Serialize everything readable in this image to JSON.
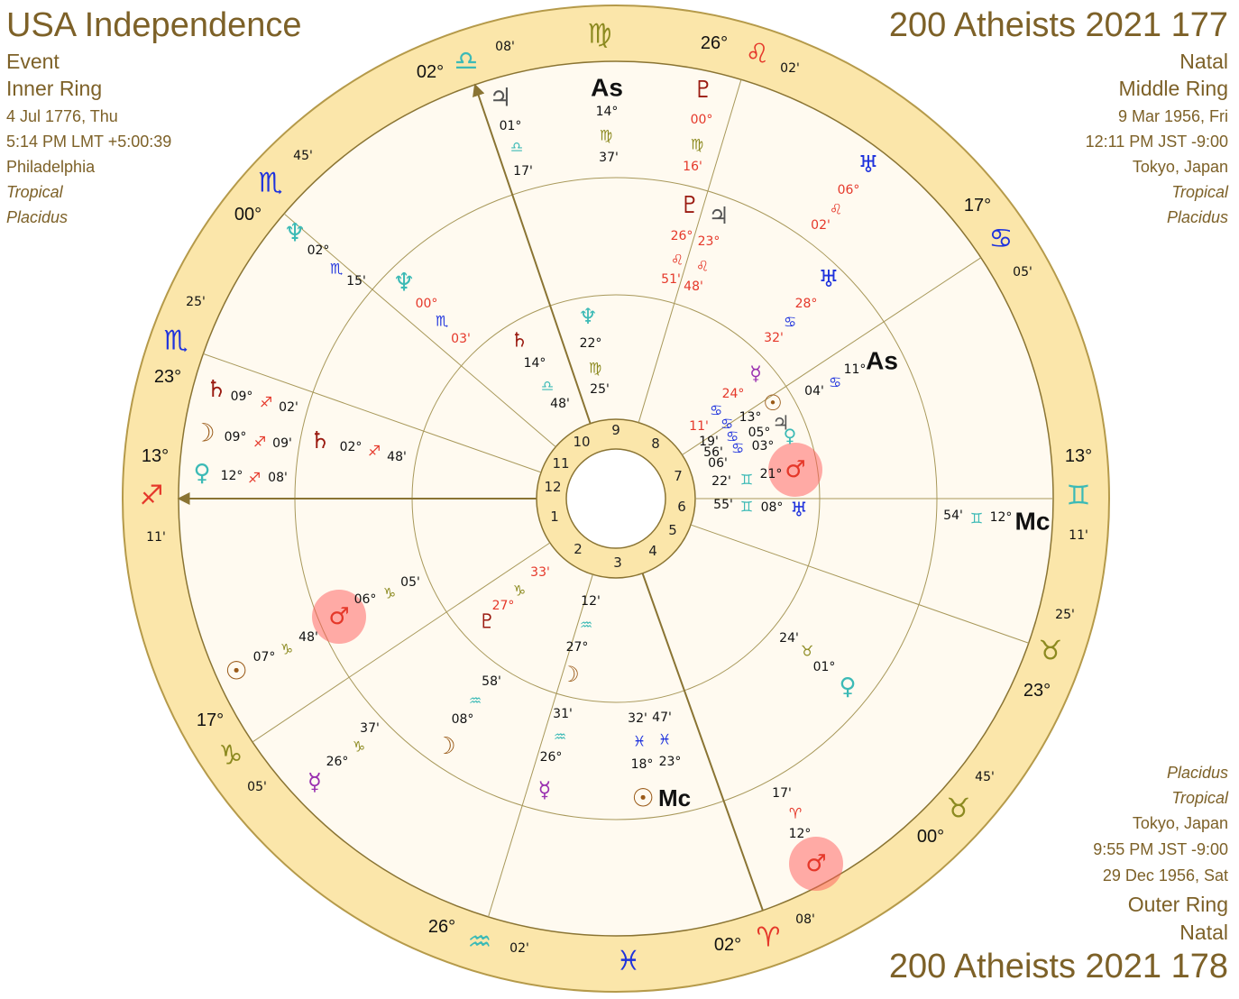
{
  "left_header": {
    "title": "USA Independence",
    "chart_type": "Event",
    "ring": "Inner Ring",
    "date": "4 Jul 1776, Thu",
    "time": "5:14 PM LMT +5:00:39",
    "place": "Philadelphia",
    "zodiac": "Tropical",
    "houses": "Placidus"
  },
  "right_header": {
    "title": "200 Atheists 2021 177",
    "chart_type": "Natal",
    "ring": "Middle Ring",
    "date": "9 Mar 1956, Fri",
    "time": "12:11 PM JST -9:00",
    "place": "Tokyo, Japan",
    "zodiac": "Tropical",
    "houses": "Placidus"
  },
  "bottom_header": {
    "houses": "Placidus",
    "zodiac": "Tropical",
    "place": "Tokyo, Japan",
    "time": "9:55 PM JST -9:00",
    "date": "29 Dec 1956, Sat",
    "ring": "Outer Ring",
    "chart_type": "Natal",
    "title": "200 Atheists 2021 178"
  },
  "house_numbers": [
    "1",
    "2",
    "3",
    "4",
    "5",
    "6",
    "7",
    "8",
    "9",
    "10",
    "11",
    "12"
  ],
  "cusps": [
    {
      "degree": "13°",
      "sign": "♐",
      "minutes": "11'"
    },
    {
      "degree": "23°",
      "sign": "♏",
      "minutes": "25'"
    },
    {
      "degree": "00°",
      "sign": "♏",
      "minutes": "45'"
    },
    {
      "degree": "02°",
      "sign": "♎",
      "minutes": "08'"
    },
    {
      "degree": "26°",
      "sign": "♌",
      "minutes": "02'"
    },
    {
      "degree": "17°",
      "sign": "♋",
      "minutes": "05'"
    },
    {
      "degree": "13°",
      "sign": "♊",
      "minutes": "11'"
    },
    {
      "degree": "23°",
      "sign": "♉",
      "minutes": "25'"
    },
    {
      "degree": "00°",
      "sign": "♉",
      "minutes": "45'"
    },
    {
      "degree": "02°",
      "sign": "♈",
      "minutes": "08'"
    },
    {
      "degree": "26°",
      "sign": "♒",
      "minutes": "02'"
    },
    {
      "degree": "17°",
      "sign": "♑",
      "minutes": "05'"
    }
  ],
  "intercepted_signs": [
    "♍",
    "♓"
  ],
  "wheel_labels": [
    "♃",
    "01°",
    "♎",
    "17'",
    "As",
    "14°",
    "♍",
    "37'",
    "♇",
    "00°",
    "♍",
    "16'",
    "♅",
    "06°",
    "♌",
    "02'",
    "♆",
    "02°",
    "♏",
    "15'",
    "♄",
    "09°",
    "♐",
    "02'",
    "☽",
    "09°",
    "♐",
    "09'",
    "♀",
    "12°",
    "♐",
    "08'",
    "♂",
    "06°",
    "♑",
    "05'",
    "☉",
    "07°",
    "♑",
    "48'",
    "☿",
    "26°",
    "♑",
    "37'",
    "♂",
    "12°",
    "♈",
    "17'",
    "Mc",
    "12°",
    "♊",
    "54'",
    "As",
    "11°",
    "♋",
    "04'",
    "♇",
    "♃",
    "26°",
    "23°",
    "♌",
    "♌",
    "51'",
    "48'",
    "♆",
    "00°",
    "♏",
    "03'",
    "♅",
    "28°",
    "♋",
    "32'",
    "♄",
    "02°",
    "♐",
    "48'",
    "♀",
    "01°",
    "♉",
    "24'",
    "♂",
    "21°",
    "♊",
    "22'",
    "♅",
    "08°",
    "♊",
    "55'",
    "☿",
    "24°",
    "☉",
    "13°",
    "♃",
    "05°",
    "♀",
    "03°",
    "♋",
    "11'",
    "♋",
    "♋",
    "♋",
    "19'",
    "56'",
    "06'",
    "♇",
    "27°",
    "♑",
    "33'",
    "☽",
    "08°",
    "♒",
    "58'",
    "♄",
    "14°",
    "♎",
    "48'",
    "♆",
    "22°",
    "♍",
    "25'",
    "☽",
    "27°",
    "♒",
    "12'",
    "☿",
    "26°",
    "♒",
    "31'",
    "☉",
    "Mc",
    "18°",
    "23°",
    "♓",
    "♓",
    "32'",
    "47'"
  ]
}
